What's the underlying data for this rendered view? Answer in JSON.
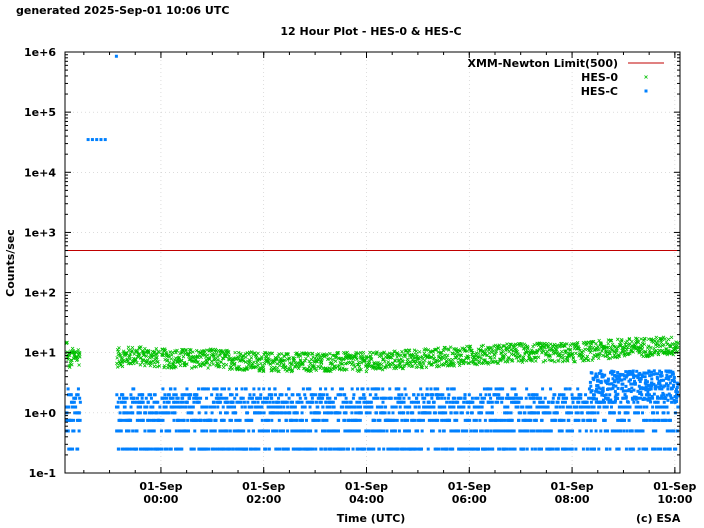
{
  "generated": "generated 2025-Sep-01 10:06 UTC",
  "credit": "(c) ESA",
  "colors": {
    "hes0": "#00c000",
    "hesc": "#0080ff",
    "limit": "#c00000",
    "frame": "#000000",
    "grid": "#c8c8c8"
  },
  "chart_data": {
    "type": "scatter",
    "title": "12 Hour Plot - HES-0 & HES-C",
    "xlabel": "Time (UTC)",
    "ylabel": "Counts/sec",
    "yscale": "log",
    "ylim": [
      0.1,
      1000000
    ],
    "xlim": [
      "2025-08-31 22:08",
      "2025-09-01 10:06"
    ],
    "grid": true,
    "legend_position": "top-right",
    "y_ticks": [
      {
        "value": 0.1,
        "label": "1e-1"
      },
      {
        "value": 1,
        "label": "1e+0"
      },
      {
        "value": 10,
        "label": "1e+1"
      },
      {
        "value": 100,
        "label": "1e+2"
      },
      {
        "value": 1000,
        "label": "1e+3"
      },
      {
        "value": 10000,
        "label": "1e+4"
      },
      {
        "value": 100000,
        "label": "1e+5"
      },
      {
        "value": 1000000,
        "label": "1e+6"
      }
    ],
    "x_ticks": [
      {
        "time": "2025-09-01 00:00",
        "line1": "01-Sep",
        "line2": "00:00"
      },
      {
        "time": "2025-09-01 02:00",
        "line1": "01-Sep",
        "line2": "02:00"
      },
      {
        "time": "2025-09-01 04:00",
        "line1": "01-Sep",
        "line2": "04:00"
      },
      {
        "time": "2025-09-01 06:00",
        "line1": "01-Sep",
        "line2": "06:00"
      },
      {
        "time": "2025-09-01 08:00",
        "line1": "01-Sep",
        "line2": "08:00"
      },
      {
        "time": "2025-09-01 10:00",
        "line1": "01-Sep",
        "line2": "10:00"
      }
    ],
    "series": [
      {
        "name": "XMM-Newton Limit(500)",
        "style": "line",
        "color": "#c00000",
        "points": [
          {
            "t": "2025-08-31 22:08",
            "y": 500
          },
          {
            "t": "2025-09-01 10:06",
            "y": 500
          }
        ]
      },
      {
        "name": "HES-0",
        "style": "cross",
        "color": "#00c000",
        "points": [
          {
            "t": "2025-08-31 22:10",
            "y": 7
          },
          {
            "t": "2025-08-31 22:20",
            "y": 9
          },
          {
            "t": "2025-08-31 23:00",
            "y": 8
          },
          {
            "t": "2025-08-31 23:30",
            "y": 9
          },
          {
            "t": "2025-09-01 00:00",
            "y": 8
          },
          {
            "t": "2025-09-01 01:00",
            "y": 8
          },
          {
            "t": "2025-09-01 02:00",
            "y": 7
          },
          {
            "t": "2025-09-01 03:00",
            "y": 7
          },
          {
            "t": "2025-09-01 04:00",
            "y": 7
          },
          {
            "t": "2025-09-01 05:00",
            "y": 8
          },
          {
            "t": "2025-09-01 06:00",
            "y": 9
          },
          {
            "t": "2025-09-01 07:00",
            "y": 10
          },
          {
            "t": "2025-09-01 08:00",
            "y": 10
          },
          {
            "t": "2025-09-01 09:00",
            "y": 12
          },
          {
            "t": "2025-09-01 10:00",
            "y": 13
          }
        ]
      },
      {
        "name": "HES-C",
        "style": "square",
        "color": "#0080ff",
        "levels": [
          0.25,
          0.5,
          0.75,
          1.0,
          1.25,
          1.5,
          1.75,
          2.0,
          2.5
        ],
        "points": [
          {
            "t": "2025-08-31 22:35",
            "y": 35000
          },
          {
            "t": "2025-08-31 22:40",
            "y": 35000
          },
          {
            "t": "2025-08-31 22:45",
            "y": 35000
          },
          {
            "t": "2025-08-31 22:50",
            "y": 35000
          },
          {
            "t": "2025-08-31 22:55",
            "y": 35000
          },
          {
            "t": "2025-08-31 23:08",
            "y": 850000
          },
          {
            "t": "2025-09-01 09:00",
            "y": 4
          },
          {
            "t": "2025-09-01 09:30",
            "y": 5
          }
        ]
      }
    ]
  }
}
